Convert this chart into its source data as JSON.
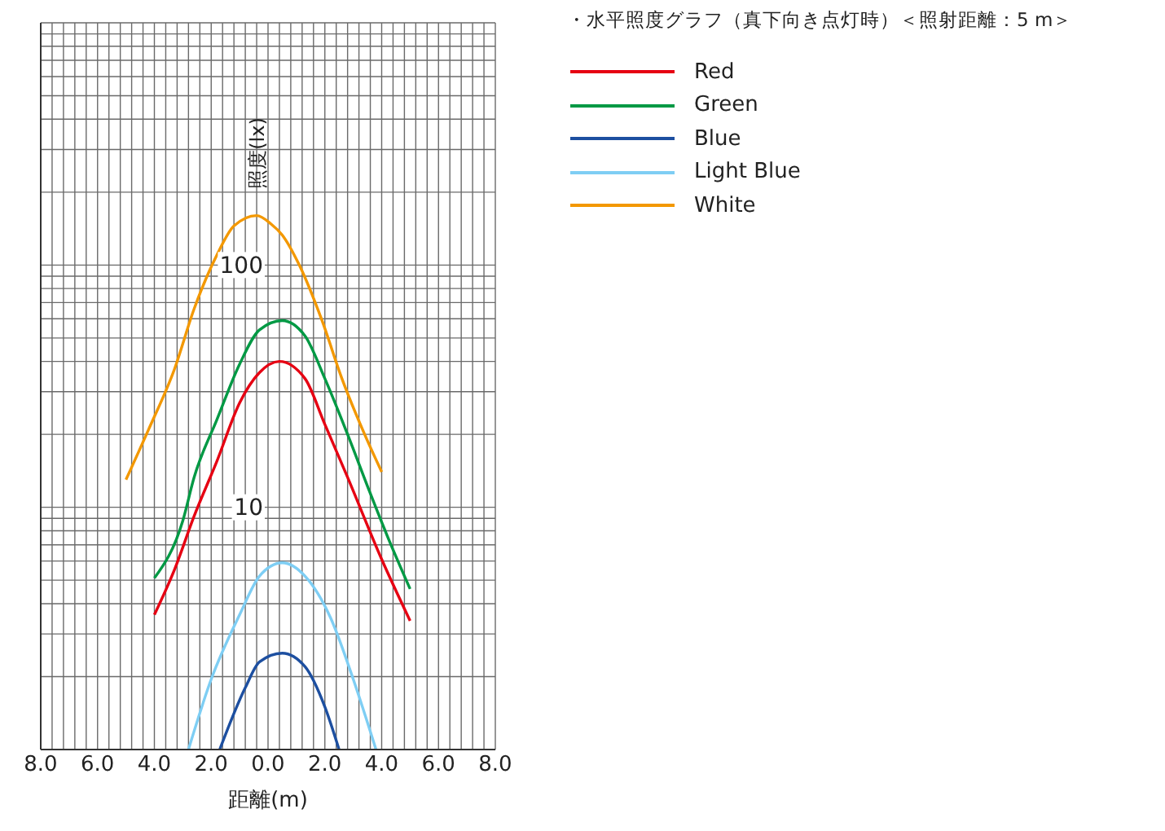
{
  "chart_data": {
    "type": "line",
    "title": "・水平照度グラフ（真下向き点灯時）＜照射距離：5 m＞",
    "xlabel": "距離(m)",
    "ylabel": "照度(lx)",
    "xlim": [
      -8,
      8
    ],
    "xticks": [
      {
        "value": -8,
        "label": "8.0"
      },
      {
        "value": -7.6,
        "label": null
      },
      {
        "value": -7.2,
        "label": null
      },
      {
        "value": -6.8,
        "label": null
      },
      {
        "value": -6.4,
        "label": null
      },
      {
        "value": -6,
        "label": "6.0"
      },
      {
        "value": -5.6,
        "label": null
      },
      {
        "value": -5.2,
        "label": null
      },
      {
        "value": -4.8,
        "label": null
      },
      {
        "value": -4.4,
        "label": null
      },
      {
        "value": -4,
        "label": "4.0"
      },
      {
        "value": -3.6,
        "label": null
      },
      {
        "value": -3.2,
        "label": null
      },
      {
        "value": -2.8,
        "label": null
      },
      {
        "value": -2.4,
        "label": null
      },
      {
        "value": -2,
        "label": "2.0"
      },
      {
        "value": -1.6,
        "label": null
      },
      {
        "value": -1.2,
        "label": null
      },
      {
        "value": -0.8,
        "label": null
      },
      {
        "value": -0.4,
        "label": null
      },
      {
        "value": 0,
        "label": "0.0"
      },
      {
        "value": 0.4,
        "label": null
      },
      {
        "value": 0.8,
        "label": null
      },
      {
        "value": 1.2,
        "label": null
      },
      {
        "value": 1.6,
        "label": null
      },
      {
        "value": 2,
        "label": "2.0"
      },
      {
        "value": 2.4,
        "label": null
      },
      {
        "value": 2.8,
        "label": null
      },
      {
        "value": 3.2,
        "label": null
      },
      {
        "value": 3.6,
        "label": null
      },
      {
        "value": 4,
        "label": "4.0"
      },
      {
        "value": 4.4,
        "label": null
      },
      {
        "value": 4.8,
        "label": null
      },
      {
        "value": 5.2,
        "label": null
      },
      {
        "value": 5.6,
        "label": null
      },
      {
        "value": 6,
        "label": "6.0"
      },
      {
        "value": 6.4,
        "label": null
      },
      {
        "value": 6.8,
        "label": null
      },
      {
        "value": 7.2,
        "label": null
      },
      {
        "value": 7.6,
        "label": null
      },
      {
        "value": 8,
        "label": "8.0"
      }
    ],
    "ylim": [
      1,
      1000
    ],
    "log": true,
    "yticks": [
      {
        "value": 1,
        "label": null
      },
      {
        "value": 2,
        "label": null
      },
      {
        "value": 3,
        "label": null
      },
      {
        "value": 4,
        "label": null
      },
      {
        "value": 5,
        "label": null
      },
      {
        "value": 6,
        "label": null
      },
      {
        "value": 7,
        "label": null
      },
      {
        "value": 8,
        "label": null
      },
      {
        "value": 9,
        "label": null
      },
      {
        "value": 10,
        "label": "10"
      },
      {
        "value": 20,
        "label": null
      },
      {
        "value": 30,
        "label": null
      },
      {
        "value": 40,
        "label": null
      },
      {
        "value": 50,
        "label": null
      },
      {
        "value": 60,
        "label": null
      },
      {
        "value": 70,
        "label": null
      },
      {
        "value": 80,
        "label": null
      },
      {
        "value": 90,
        "label": null
      },
      {
        "value": 100,
        "label": "100"
      },
      {
        "value": 200,
        "label": null
      },
      {
        "value": 300,
        "label": null
      },
      {
        "value": 400,
        "label": null
      },
      {
        "value": 500,
        "label": null
      },
      {
        "value": 600,
        "label": null
      },
      {
        "value": 700,
        "label": null
      },
      {
        "value": 800,
        "label": null
      },
      {
        "value": 900,
        "label": null
      },
      {
        "value": 1000,
        "label": null
      }
    ],
    "grid": true,
    "legend": "right",
    "marker": "none",
    "line_style": "solid",
    "series": [
      {
        "name": "Red",
        "color": "#e60012",
        "x": [
          -4.0,
          -3.3,
          -2.6,
          -1.8,
          -1.0,
          -0.3,
          0.4,
          1.3,
          2.0,
          2.8,
          4.0,
          5.0
        ],
        "values": [
          3.6,
          5.5,
          9.2,
          15.5,
          27,
          36,
          40,
          34,
          22,
          13.3,
          6.1,
          3.4
        ]
      },
      {
        "name": "Green",
        "color": "#009944",
        "x": [
          -4.0,
          -3.0,
          -2.6,
          -1.8,
          -1.0,
          -0.3,
          0.5,
          1.3,
          2.0,
          2.8,
          3.6,
          4.2,
          5.0
        ],
        "values": [
          5.1,
          8.8,
          13.3,
          23,
          39,
          54,
          59,
          51,
          34,
          20,
          11.4,
          7.6,
          4.6
        ]
      },
      {
        "name": "Blue",
        "color": "#1d4fa0",
        "x": [
          -1.7,
          -0.8,
          -0.3,
          0.5,
          1.3,
          2.0,
          2.5
        ],
        "values": [
          1.0,
          1.8,
          2.3,
          2.5,
          2.2,
          1.5,
          1.0
        ]
      },
      {
        "name": "Light Blue",
        "color": "#7ecef4",
        "x": [
          -2.8,
          -2.0,
          -1.0,
          -0.3,
          0.5,
          1.3,
          2.2,
          3.0,
          3.8
        ],
        "values": [
          1.0,
          1.95,
          3.6,
          5.2,
          5.9,
          5.2,
          3.5,
          1.95,
          1.0
        ]
      },
      {
        "name": "White",
        "color": "#f39800",
        "x": [
          -5.0,
          -4.2,
          -3.3,
          -2.6,
          -1.8,
          -1.2,
          -0.4,
          0.1,
          0.5,
          1.1,
          1.9,
          2.6,
          3.4,
          4.0
        ],
        "values": [
          13,
          21,
          37,
          66,
          110,
          145,
          160,
          148,
          133,
          100,
          59,
          34,
          20,
          14
        ]
      }
    ]
  }
}
